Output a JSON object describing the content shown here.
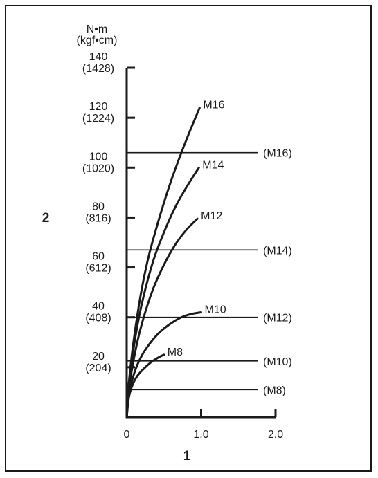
{
  "chart_data": {
    "type": "line",
    "xlabel": "1",
    "ylabel": "2",
    "y_unit": [
      "N•m",
      "(kgf•cm)"
    ],
    "xlim": [
      0,
      2.0
    ],
    "ylim": [
      0,
      140
    ],
    "x_ticks": [
      {
        "value": 0,
        "label": "0"
      },
      {
        "value": 1.0,
        "label": "1.0"
      },
      {
        "value": 2.0,
        "label": "2.0"
      }
    ],
    "y_ticks": [
      {
        "value": 20,
        "primary": "20",
        "secondary": "(204)"
      },
      {
        "value": 40,
        "primary": "40",
        "secondary": "(408)"
      },
      {
        "value": 60,
        "primary": "60",
        "secondary": "(612)"
      },
      {
        "value": 80,
        "primary": "80",
        "secondary": "(816)"
      },
      {
        "value": 100,
        "primary": "100",
        "secondary": "(1020)"
      },
      {
        "value": 120,
        "primary": "120",
        "secondary": "(1224)"
      },
      {
        "value": 140,
        "primary": "140",
        "secondary": "(1428)"
      }
    ],
    "series": [
      {
        "name": "M8",
        "x": [
          0,
          0.03,
          0.08,
          0.15,
          0.25,
          0.35,
          0.45,
          0.5
        ],
        "y": [
          0,
          8.0,
          13.0,
          16.8,
          20.0,
          22.5,
          24.3,
          25.0
        ]
      },
      {
        "name": "M10",
        "x": [
          0,
          0.03,
          0.1,
          0.2,
          0.35,
          0.5,
          0.7,
          0.85,
          1.0
        ],
        "y": [
          0,
          9.0,
          17.5,
          24.5,
          31.0,
          35.5,
          39.5,
          41.2,
          42.0
        ]
      },
      {
        "name": "M12",
        "x": [
          0,
          0.03,
          0.1,
          0.2,
          0.35,
          0.5,
          0.65,
          0.8,
          0.95
        ],
        "y": [
          0,
          11.0,
          24.0,
          37.0,
          51.0,
          61.0,
          69.0,
          75.0,
          79.5
        ]
      },
      {
        "name": "M14",
        "x": [
          0,
          0.03,
          0.1,
          0.2,
          0.35,
          0.5,
          0.65,
          0.8,
          0.97
        ],
        "y": [
          0,
          13.0,
          29.0,
          45.0,
          62.0,
          74.0,
          84.0,
          92.0,
          100.0
        ]
      },
      {
        "name": "M16",
        "x": [
          0,
          0.03,
          0.1,
          0.2,
          0.3,
          0.45,
          0.6,
          0.8,
          0.98
        ],
        "y": [
          0,
          14.0,
          32.0,
          51.0,
          65.0,
          81.0,
          95.0,
          111.0,
          124.0
        ]
      }
    ],
    "reference_lines": [
      {
        "label": "(M16)",
        "y": 106
      },
      {
        "label": "(M14)",
        "y": 67
      },
      {
        "label": "(M12)",
        "y": 40
      },
      {
        "label": "(M10)",
        "y": 22.5
      },
      {
        "label": "(M8)",
        "y": 11
      }
    ],
    "grid": false
  },
  "colors": {
    "line": "#1a1a1a",
    "background": "#ffffff"
  }
}
